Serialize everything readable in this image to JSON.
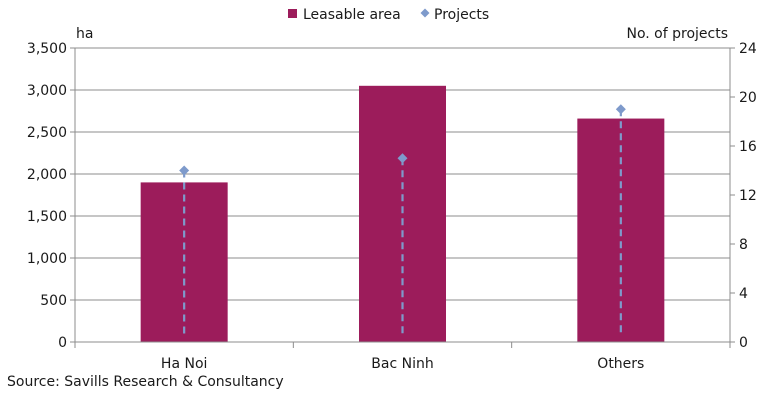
{
  "chart_data": {
    "type": "bar",
    "categories": [
      "Ha Noi",
      "Bac Ninh",
      "Others"
    ],
    "series": [
      {
        "name": "Leasable area",
        "type": "bar",
        "axis": "left",
        "color": "#9C1C5B",
        "values": [
          1900,
          3050,
          2660
        ]
      },
      {
        "name": "Projects",
        "type": "marker-drop",
        "axis": "right",
        "color": "#7E9ACB",
        "values": [
          14,
          15,
          19
        ]
      }
    ],
    "ylabel_left": "ha",
    "ylabel_right": "No. of projects",
    "ylim_left": [
      0,
      3500
    ],
    "yticks_left": [
      "0",
      "500",
      "1,000",
      "1,500",
      "2,000",
      "2,500",
      "3,000",
      "3,500"
    ],
    "ylim_right": [
      0,
      24
    ],
    "yticks_right": [
      "0",
      "4",
      "8",
      "12",
      "16",
      "20",
      "24"
    ],
    "grid": true,
    "legend_position": "top-center"
  },
  "source": "Source: Savills Research & Consultancy"
}
